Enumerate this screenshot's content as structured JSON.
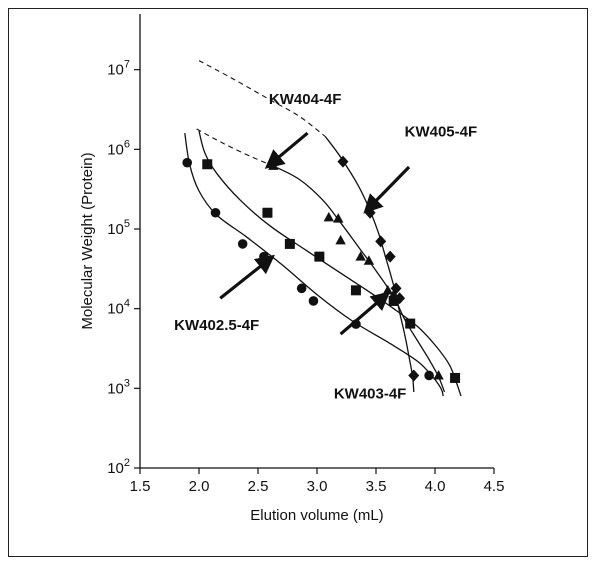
{
  "chart_data": {
    "type": "scatter",
    "title": "",
    "xlabel": "Elution volume (mL)",
    "ylabel": "Molecular Weight (Protein)",
    "xlim": [
      1.5,
      4.5
    ],
    "ylim": [
      100,
      50000000
    ],
    "yscale": "log",
    "x_ticks": [
      "1.5",
      "2.0",
      "2.5",
      "3.0",
      "3.5",
      "4.0",
      "4.5"
    ],
    "x_tick_values": [
      1.5,
      2.0,
      2.5,
      3.0,
      3.5,
      4.0,
      4.5
    ],
    "y_ticks": [
      {
        "value": 100,
        "base": "10",
        "exp": "2"
      },
      {
        "value": 1000,
        "base": "10",
        "exp": "3"
      },
      {
        "value": 10000,
        "base": "10",
        "exp": "4"
      },
      {
        "value": 100000,
        "base": "10",
        "exp": "5"
      },
      {
        "value": 1000000,
        "base": "10",
        "exp": "6"
      },
      {
        "value": 10000000,
        "base": "10",
        "exp": "7"
      }
    ],
    "grid": false,
    "color": "#111111",
    "series": [
      {
        "name": "KW402.5-4F",
        "marker": "circle",
        "points": [
          [
            1.9,
            680000
          ],
          [
            2.14,
            160000
          ],
          [
            2.37,
            65000
          ],
          [
            2.55,
            45000
          ],
          [
            2.87,
            18000
          ],
          [
            2.97,
            12500
          ],
          [
            3.33,
            6400
          ],
          [
            3.95,
            1450
          ]
        ],
        "curve": [
          [
            1.88,
            1600000
          ],
          [
            1.92,
            650000
          ],
          [
            2.0,
            300000
          ],
          [
            2.15,
            150000
          ],
          [
            2.4,
            80000
          ],
          [
            2.7,
            36000
          ],
          [
            3.0,
            15000
          ],
          [
            3.3,
            7000
          ],
          [
            3.6,
            3800
          ],
          [
            3.85,
            2200
          ],
          [
            3.98,
            1400
          ],
          [
            4.05,
            1000
          ],
          [
            4.07,
            800
          ]
        ]
      },
      {
        "name": "KW403-4F",
        "marker": "square",
        "points": [
          [
            2.07,
            650000
          ],
          [
            2.58,
            160000
          ],
          [
            2.77,
            65000
          ],
          [
            3.02,
            45000
          ],
          [
            3.33,
            17000
          ],
          [
            3.65,
            12500
          ],
          [
            3.79,
            6500
          ],
          [
            4.17,
            1350
          ]
        ],
        "curve": [
          [
            2.0,
            1700000
          ],
          [
            2.05,
            900000
          ],
          [
            2.15,
            500000
          ],
          [
            2.35,
            230000
          ],
          [
            2.6,
            110000
          ],
          [
            2.9,
            55000
          ],
          [
            3.2,
            28000
          ],
          [
            3.45,
            16000
          ],
          [
            3.65,
            10000
          ],
          [
            3.85,
            6000
          ],
          [
            4.0,
            3500
          ],
          [
            4.12,
            2000
          ],
          [
            4.18,
            1200
          ],
          [
            4.22,
            800
          ]
        ]
      },
      {
        "name": "KW404-4F",
        "marker": "triangle",
        "points": [
          [
            2.63,
            620000
          ],
          [
            3.1,
            140000
          ],
          [
            3.18,
            135000
          ],
          [
            3.2,
            72000
          ],
          [
            3.37,
            45000
          ],
          [
            3.44,
            40000
          ],
          [
            3.6,
            17000
          ],
          [
            3.65,
            15000
          ],
          [
            4.03,
            1450
          ]
        ],
        "curve": [
          [
            2.63,
            620000
          ],
          [
            2.85,
            420000
          ],
          [
            3.05,
            230000
          ],
          [
            3.2,
            120000
          ],
          [
            3.35,
            60000
          ],
          [
            3.5,
            30000
          ],
          [
            3.65,
            14000
          ],
          [
            3.75,
            7000
          ],
          [
            3.85,
            4000
          ],
          [
            3.95,
            2300
          ],
          [
            4.03,
            1400
          ],
          [
            4.08,
            900
          ]
        ]
      },
      {
        "name": "KW405-4F",
        "marker": "diamond",
        "points": [
          [
            3.22,
            700000
          ],
          [
            3.45,
            160000
          ],
          [
            3.54,
            70000
          ],
          [
            3.62,
            45000
          ],
          [
            3.67,
            18000
          ],
          [
            3.7,
            13500
          ],
          [
            3.82,
            1450
          ]
        ],
        "curve": [
          [
            3.07,
            1450000
          ],
          [
            3.2,
            800000
          ],
          [
            3.35,
            350000
          ],
          [
            3.45,
            170000
          ],
          [
            3.52,
            90000
          ],
          [
            3.58,
            45000
          ],
          [
            3.63,
            25000
          ],
          [
            3.67,
            15000
          ],
          [
            3.7,
            9000
          ],
          [
            3.74,
            5000
          ],
          [
            3.78,
            2500
          ],
          [
            3.81,
            1400
          ],
          [
            3.82,
            900
          ]
        ]
      }
    ],
    "dashed_curves": [
      [
        [
          2.0,
          13000000
        ],
        [
          2.3,
          7500000
        ],
        [
          2.6,
          4200000
        ],
        [
          2.85,
          2600000
        ],
        [
          3.07,
          1450000
        ]
      ],
      [
        [
          1.98,
          1800000
        ],
        [
          2.2,
          1200000
        ],
        [
          2.45,
          800000
        ],
        [
          2.63,
          620000
        ]
      ]
    ],
    "annotations": [
      {
        "text": "KW404-4F",
        "at": [
          2.9,
          3700000
        ],
        "arrow_from": [
          2.92,
          1600000
        ],
        "arrow_to": [
          2.62,
          680000
        ]
      },
      {
        "text": "KW405-4F",
        "at": [
          4.05,
          1450000
        ],
        "arrow_from": [
          3.78,
          600000
        ],
        "arrow_to": [
          3.45,
          190000
        ]
      },
      {
        "text": "KW402.5-4F",
        "at": [
          2.15,
          5400
        ],
        "arrow_from": [
          2.18,
          13500
        ],
        "arrow_to": [
          2.58,
          40000
        ]
      },
      {
        "text": "KW403-4F",
        "at": [
          3.45,
          750
        ],
        "arrow_from": [
          3.2,
          4800
        ],
        "arrow_to": [
          3.56,
          13800
        ]
      }
    ]
  }
}
